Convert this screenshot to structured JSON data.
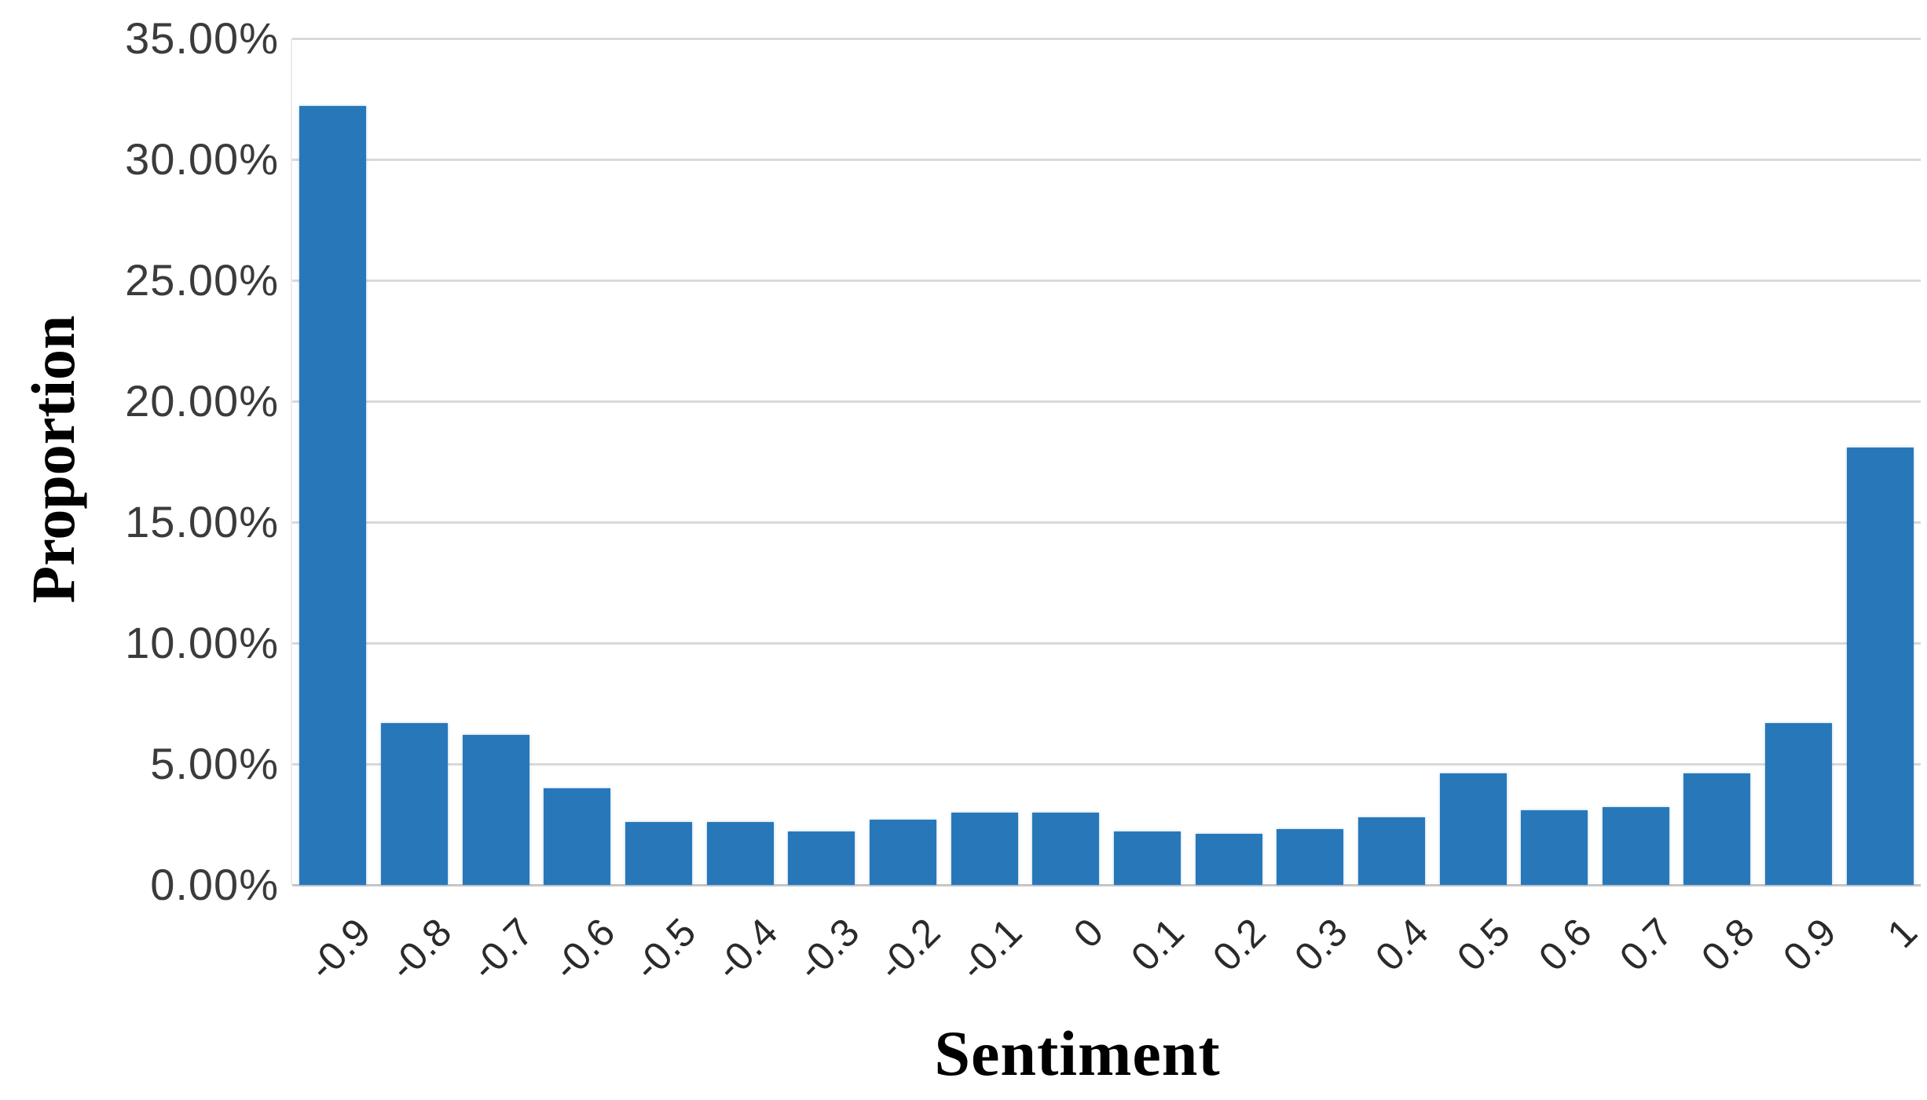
{
  "chart_data": {
    "type": "bar",
    "title": "",
    "xlabel": "Sentiment",
    "ylabel": "Proportion",
    "categories": [
      "-0.9",
      "-0.8",
      "-0.7",
      "-0.6",
      "-0.5",
      "-0.4",
      "-0.3",
      "-0.2",
      "-0.1",
      "0",
      "0.1",
      "0.2",
      "0.3",
      "0.4",
      "0.5",
      "0.6",
      "0.7",
      "0.8",
      "0.9",
      "1"
    ],
    "values": [
      32.2,
      6.7,
      6.2,
      4.0,
      2.6,
      2.6,
      2.2,
      2.7,
      3.0,
      3.0,
      2.2,
      2.1,
      2.3,
      2.8,
      4.6,
      3.1,
      3.2,
      4.6,
      6.7,
      18.1
    ],
    "y_tick_labels": [
      "35.00%",
      "30.00%",
      "25.00%",
      "20.00%",
      "15.00%",
      "10.00%",
      "5.00%",
      "0.00%"
    ],
    "ylim": [
      0,
      35
    ],
    "grid": "horizontal-only",
    "legend": "none",
    "bar_color": "#2878B9",
    "gridline_color": "#D9D9D9",
    "tick_label_color": "#3B3B3B",
    "axis_title_color": "#000000",
    "background_color": "#FFFFFF"
  }
}
